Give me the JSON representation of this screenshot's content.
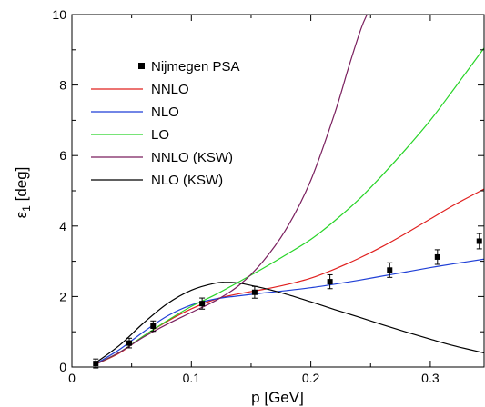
{
  "chart_data": {
    "type": "line",
    "xlabel": "p [GeV]",
    "ylabel_main": "ε",
    "ylabel_sub": "1",
    "ylabel_unit": " [deg]",
    "xlim": [
      0,
      0.345
    ],
    "ylim": [
      0,
      10
    ],
    "x_ticks": [
      0,
      0.1,
      0.2,
      0.3
    ],
    "x_tick_labels": [
      "0",
      "0.1",
      "0.2",
      "0.3"
    ],
    "y_ticks": [
      0,
      2,
      4,
      6,
      8,
      10
    ],
    "y_tick_labels": [
      "0",
      "2",
      "4",
      "6",
      "8",
      "10"
    ],
    "grid": false,
    "legend_position": "upper-left",
    "points": {
      "name": "Nijmegen PSA",
      "marker": "square",
      "color": "#000000",
      "x": [
        0.02,
        0.048,
        0.068,
        0.109,
        0.153,
        0.216,
        0.266,
        0.306,
        0.341
      ],
      "y": [
        0.1,
        0.68,
        1.16,
        1.8,
        2.12,
        2.42,
        2.75,
        3.12,
        3.57
      ],
      "err": [
        0.05,
        0.06,
        0.07,
        0.08,
        0.09,
        0.12,
        0.13,
        0.13,
        0.14
      ]
    },
    "series": [
      {
        "name": "NNLO",
        "color": "#e0201f",
        "x": [
          0.02,
          0.04,
          0.06,
          0.08,
          0.1,
          0.12,
          0.14,
          0.16,
          0.18,
          0.2,
          0.22,
          0.24,
          0.26,
          0.28,
          0.3,
          0.32,
          0.345
        ],
        "y": [
          0.08,
          0.4,
          0.88,
          1.3,
          1.65,
          1.92,
          2.08,
          2.2,
          2.34,
          2.52,
          2.78,
          3.08,
          3.42,
          3.8,
          4.2,
          4.6,
          5.05
        ]
      },
      {
        "name": "NLO",
        "color": "#1f3fd6",
        "x": [
          0.02,
          0.04,
          0.06,
          0.08,
          0.1,
          0.12,
          0.14,
          0.16,
          0.18,
          0.2,
          0.22,
          0.24,
          0.26,
          0.28,
          0.3,
          0.32,
          0.345
        ],
        "y": [
          0.09,
          0.5,
          1.0,
          1.45,
          1.76,
          1.93,
          2.02,
          2.1,
          2.17,
          2.25,
          2.35,
          2.46,
          2.58,
          2.7,
          2.82,
          2.93,
          3.06
        ]
      },
      {
        "name": "LO",
        "color": "#28d428",
        "x": [
          0.02,
          0.04,
          0.06,
          0.08,
          0.1,
          0.12,
          0.14,
          0.16,
          0.18,
          0.2,
          0.22,
          0.24,
          0.26,
          0.28,
          0.3,
          0.32,
          0.345
        ],
        "y": [
          0.08,
          0.42,
          0.88,
          1.32,
          1.72,
          2.05,
          2.42,
          2.8,
          3.2,
          3.62,
          4.15,
          4.75,
          5.45,
          6.2,
          7.0,
          7.9,
          9.05
        ]
      },
      {
        "name": "NNLO (KSW)",
        "color": "#7a1f5e",
        "x": [
          0.02,
          0.04,
          0.06,
          0.08,
          0.1,
          0.12,
          0.14,
          0.16,
          0.18,
          0.2,
          0.22,
          0.232,
          0.242,
          0.247
        ],
        "y": [
          0.08,
          0.42,
          0.85,
          1.22,
          1.55,
          1.88,
          2.32,
          3.0,
          3.95,
          5.3,
          7.2,
          8.55,
          9.6,
          10.0
        ]
      },
      {
        "name": "NLO (KSW)",
        "color": "#000000",
        "x": [
          0.02,
          0.04,
          0.06,
          0.08,
          0.1,
          0.12,
          0.13,
          0.14,
          0.16,
          0.18,
          0.2,
          0.22,
          0.24,
          0.26,
          0.28,
          0.3,
          0.32,
          0.345
        ],
        "y": [
          0.12,
          0.62,
          1.25,
          1.8,
          2.18,
          2.38,
          2.4,
          2.38,
          2.24,
          2.06,
          1.85,
          1.63,
          1.42,
          1.2,
          0.99,
          0.79,
          0.6,
          0.4
        ]
      }
    ]
  }
}
